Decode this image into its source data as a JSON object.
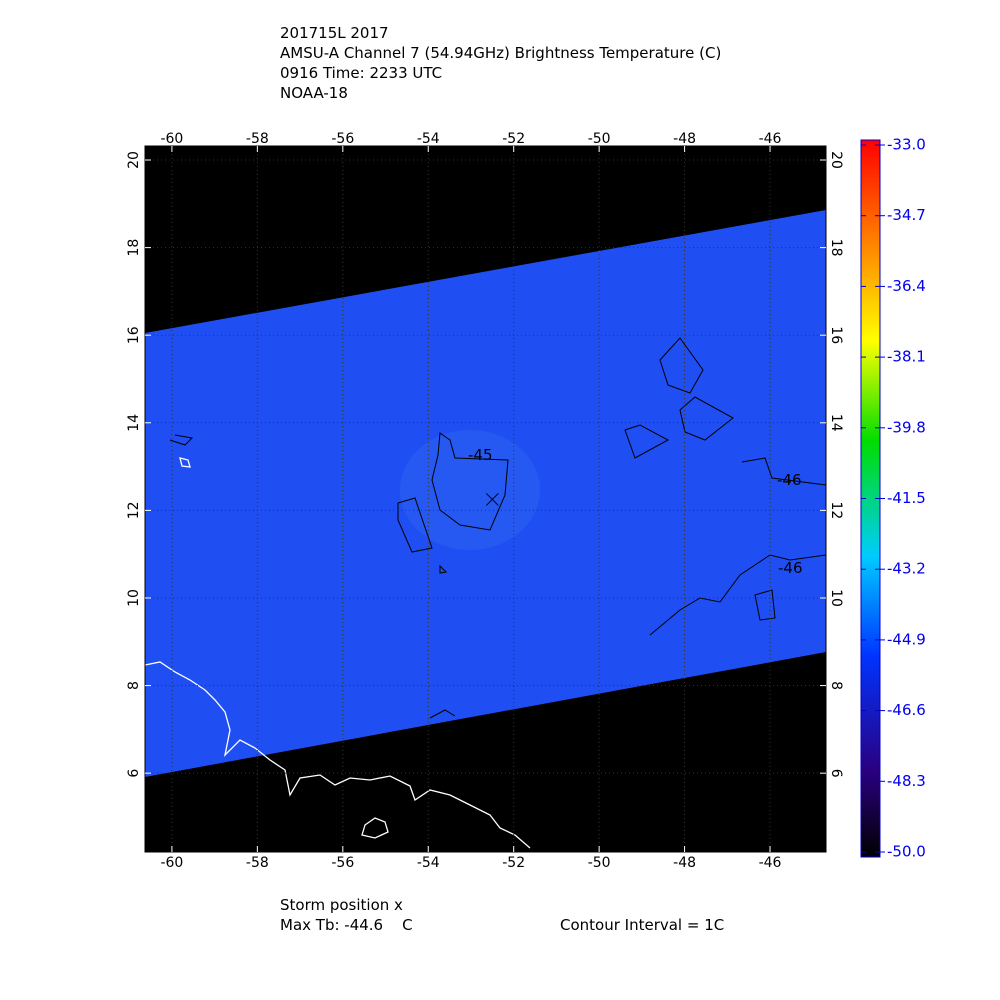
{
  "title_lines": [
    "201715L 2017",
    "AMSU-A Channel 7 (54.94GHz) Brightness Temperature (C)",
    "0916 Time: 2233 UTC",
    "NOAA-18"
  ],
  "map": {
    "type": "map",
    "xlim": [
      -60.63,
      -44.69
    ],
    "ylim": [
      4.2,
      20.32
    ],
    "xticks": [
      -60,
      -58,
      -56,
      -54,
      -52,
      -50,
      -48,
      -46
    ],
    "yticks": [
      6,
      8,
      10,
      12,
      14,
      16,
      18,
      20
    ],
    "grid": true,
    "storm_position": {
      "lon": -52.5,
      "lat": 12.25
    }
  },
  "colorbar": {
    "lim": [
      -50,
      -33
    ],
    "ticks": [
      {
        "value": -33,
        "label": "-33.0"
      },
      {
        "value": -34.7,
        "label": "-34.7"
      },
      {
        "value": -36.4,
        "label": "-36.4"
      },
      {
        "value": -38.1,
        "label": "-38.1"
      },
      {
        "value": -39.8,
        "label": "-39.8"
      },
      {
        "value": -41.5,
        "label": "-41.5"
      },
      {
        "value": -43.2,
        "label": "-43.2"
      },
      {
        "value": -44.9,
        "label": "-44.9"
      },
      {
        "value": -46.6,
        "label": "-46.6"
      },
      {
        "value": -48.3,
        "label": "-48.3"
      },
      {
        "value": -50,
        "label": "-50.0"
      }
    ]
  },
  "contour_labels": [
    "-45",
    "-46",
    "-46"
  ],
  "footer": {
    "storm": "Storm position x",
    "max_tb": "Max Tb: -44.6    C",
    "interval": "Contour Interval = 1C"
  }
}
